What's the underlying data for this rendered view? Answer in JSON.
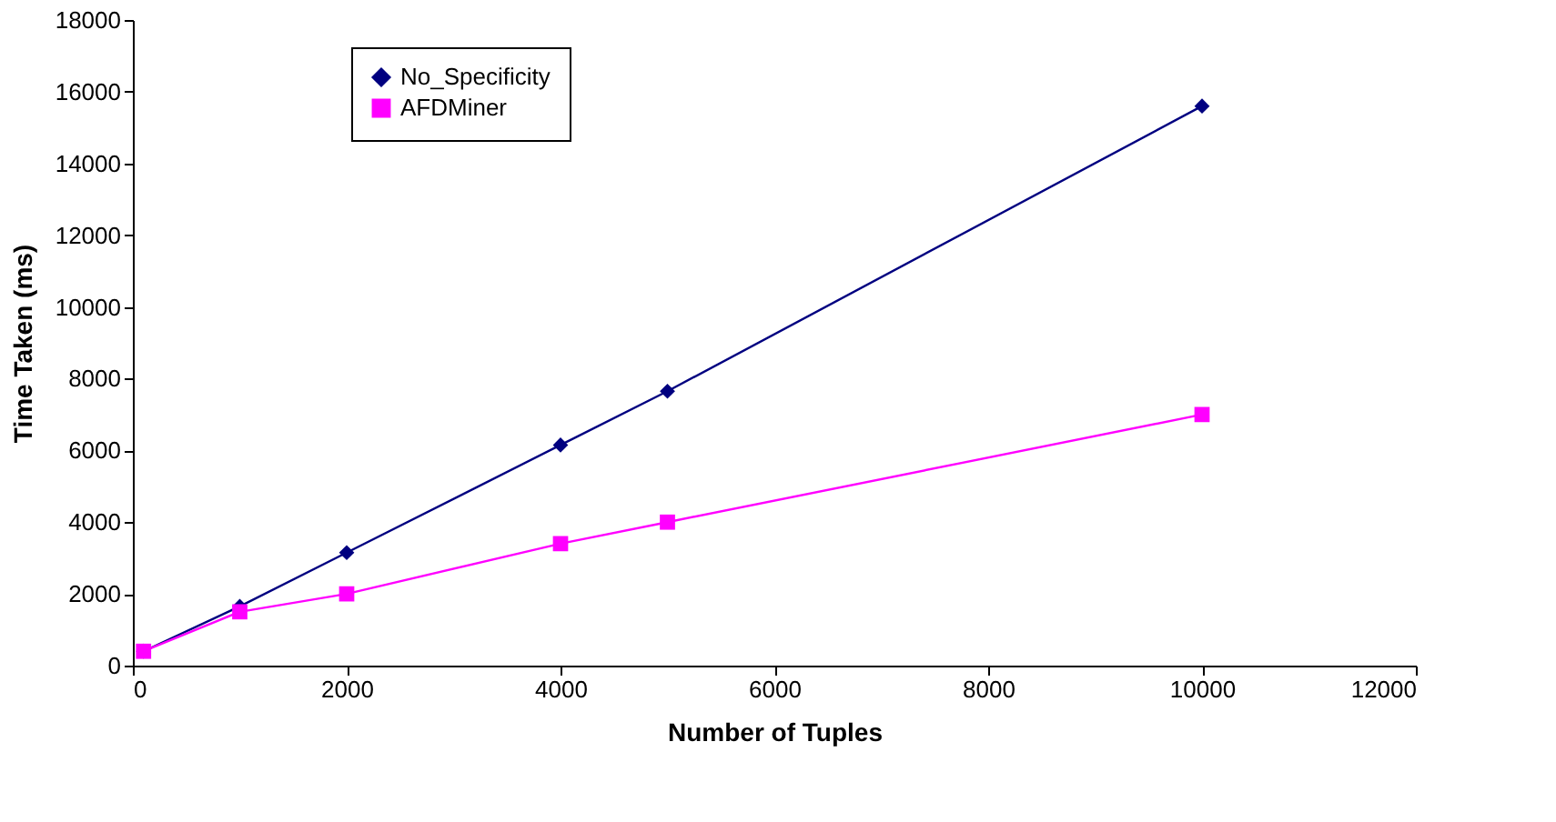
{
  "chart_data": {
    "type": "line",
    "xlabel": "Number of Tuples",
    "ylabel": "Time Taken (ms)",
    "x": [
      100,
      1000,
      2000,
      4000,
      5000,
      10000
    ],
    "series": [
      {
        "name": "No_Specificity",
        "color": "#000080",
        "marker": "diamond",
        "values": [
          400,
          1650,
          3150,
          6150,
          7650,
          15600
        ]
      },
      {
        "name": "AFDMiner",
        "color": "#ff00ff",
        "marker": "square",
        "values": [
          400,
          1500,
          2000,
          3400,
          4000,
          7000
        ]
      }
    ],
    "xlim": [
      0,
      12000
    ],
    "xticks": [
      0,
      2000,
      4000,
      6000,
      8000,
      10000,
      12000
    ],
    "ylim": [
      0,
      18000
    ],
    "yticks": [
      0,
      2000,
      4000,
      6000,
      8000,
      10000,
      12000,
      14000,
      16000,
      18000
    ],
    "grid": false,
    "legend": "top left",
    "line_style": "solid"
  }
}
